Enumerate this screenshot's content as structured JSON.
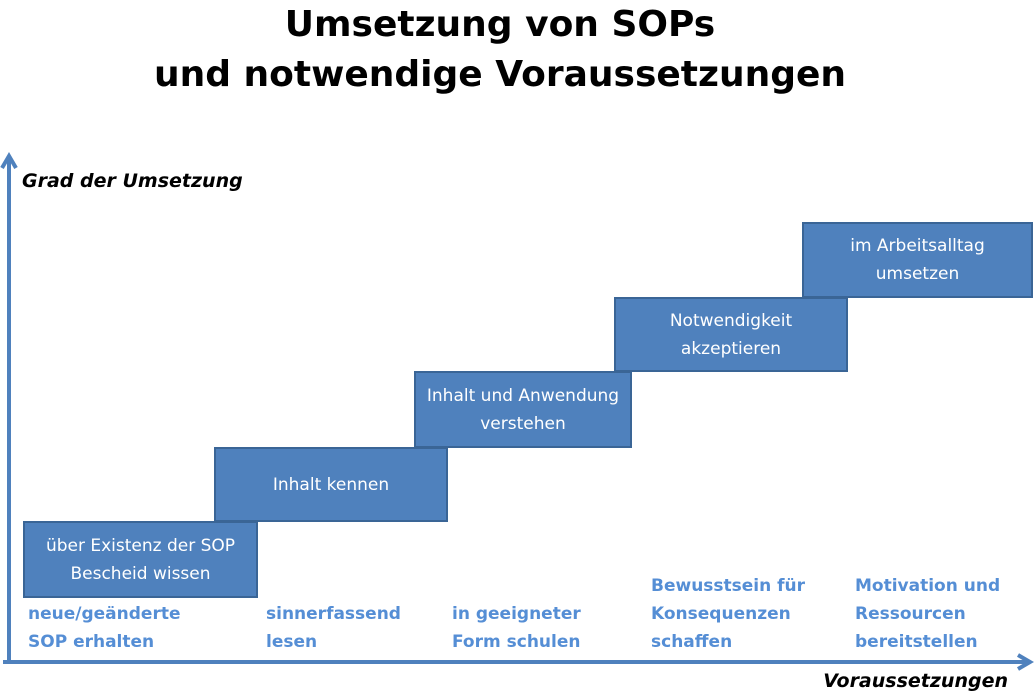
{
  "title": [
    "Umsetzung von SOPs",
    "und notwendige Voraussetzungen"
  ],
  "y_axis_label": "Grad der Umsetzung",
  "x_axis_label": "Voraussetzungen",
  "colors": {
    "box": "#4f81bd",
    "box_border": "#3a6596",
    "axis": "#4f81bd",
    "prerequisite_text": "#558ed5"
  },
  "steps": [
    {
      "line1": "über Existenz der SOP",
      "line2": "Bescheid wissen"
    },
    {
      "line1": "Inhalt kennen",
      "line2": ""
    },
    {
      "line1": "Inhalt und Anwendung",
      "line2": "verstehen"
    },
    {
      "line1": "Notwendigkeit",
      "line2": "akzeptieren"
    },
    {
      "line1": "im Arbeitsalltag",
      "line2": "umsetzen"
    }
  ],
  "prerequisites": [
    {
      "line1": "neue/geänderte",
      "line2": "SOP erhalten"
    },
    {
      "line1": "sinnerfassend",
      "line2": "lesen"
    },
    {
      "line1": "in geeigneter",
      "line2": "Form schulen"
    },
    {
      "line1": "Bewusstsein für",
      "line2": "Konsequenzen",
      "line3": "schaffen"
    },
    {
      "line1": "Motivation und",
      "line2": "Ressourcen",
      "line3": "bereitstellen"
    }
  ]
}
